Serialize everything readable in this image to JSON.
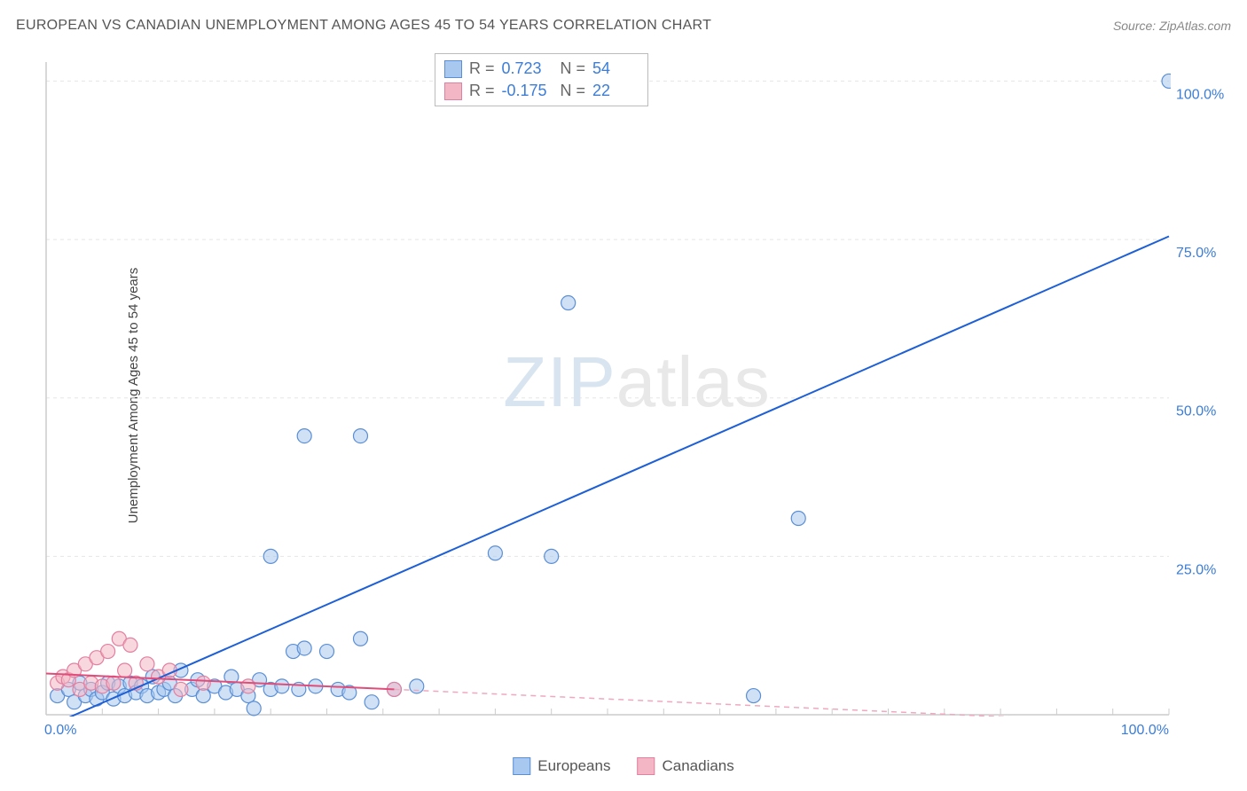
{
  "header": {
    "title": "EUROPEAN VS CANADIAN UNEMPLOYMENT AMONG AGES 45 TO 54 YEARS CORRELATION CHART",
    "source": "Source: ZipAtlas.com"
  },
  "watermark": {
    "zip": "ZIP",
    "atlas": "atlas"
  },
  "chart": {
    "type": "scatter",
    "y_axis_label": "Unemployment Among Ages 45 to 54 years",
    "xlim": [
      0,
      100
    ],
    "ylim": [
      0,
      103
    ],
    "x_ticks": [
      0,
      100
    ],
    "x_tick_labels": [
      "0.0%",
      "100.0%"
    ],
    "y_ticks": [
      25,
      50,
      75,
      100
    ],
    "y_tick_labels": [
      "25.0%",
      "50.0%",
      "75.0%",
      "100.0%"
    ],
    "grid_color": "#e5e5e5",
    "axis_color": "#cccccc",
    "background_color": "#ffffff",
    "marker_radius": 8,
    "marker_opacity": 0.55,
    "series": [
      {
        "name": "Europeans",
        "fill": "#a9c8ef",
        "stroke": "#5a8fd6",
        "trend_line": {
          "x1": 0,
          "y1": -2,
          "x2": 100,
          "y2": 75.5,
          "color": "#1d5fd6",
          "width": 2,
          "dash": null
        },
        "trend_extend": null,
        "stats": {
          "R": "0.723",
          "N": "54"
        },
        "points": [
          [
            1,
            3
          ],
          [
            2,
            4
          ],
          [
            2.5,
            2
          ],
          [
            3,
            5
          ],
          [
            3.5,
            3
          ],
          [
            4,
            4
          ],
          [
            4.5,
            2.5
          ],
          [
            5,
            3.5
          ],
          [
            5.5,
            5
          ],
          [
            6,
            2.5
          ],
          [
            6.5,
            4.5
          ],
          [
            7,
            3
          ],
          [
            7.5,
            5
          ],
          [
            8,
            3.5
          ],
          [
            8.5,
            4.5
          ],
          [
            9,
            3
          ],
          [
            9.5,
            6
          ],
          [
            10,
            3.5
          ],
          [
            10.5,
            4
          ],
          [
            11,
            5
          ],
          [
            11.5,
            3
          ],
          [
            12,
            7
          ],
          [
            13,
            4
          ],
          [
            13.5,
            5.5
          ],
          [
            14,
            3
          ],
          [
            15,
            4.5
          ],
          [
            16,
            3.5
          ],
          [
            16.5,
            6
          ],
          [
            17,
            4
          ],
          [
            18,
            3
          ],
          [
            18.5,
            1
          ],
          [
            19,
            5.5
          ],
          [
            20,
            4
          ],
          [
            21,
            4.5
          ],
          [
            22,
            10
          ],
          [
            22.5,
            4
          ],
          [
            23,
            10.5
          ],
          [
            24,
            4.5
          ],
          [
            25,
            10
          ],
          [
            26,
            4
          ],
          [
            27,
            3.5
          ],
          [
            28,
            12
          ],
          [
            29,
            2
          ],
          [
            31,
            4
          ],
          [
            33,
            4.5
          ],
          [
            20,
            25
          ],
          [
            23,
            44
          ],
          [
            28,
            44
          ],
          [
            40,
            25.5
          ],
          [
            45,
            25
          ],
          [
            46.5,
            65
          ],
          [
            67,
            31
          ],
          [
            63,
            3
          ],
          [
            100,
            100
          ]
        ]
      },
      {
        "name": "Canadians",
        "fill": "#f3b6c5",
        "stroke": "#e37fa0",
        "trend_line": {
          "x1": 0,
          "y1": 6.5,
          "x2": 31,
          "y2": 4.0,
          "color": "#e04d7a",
          "width": 2,
          "dash": null
        },
        "trend_extend": {
          "x1": 31,
          "y1": 4.0,
          "x2": 100,
          "y2": -1.5,
          "color": "#f0a8bf",
          "width": 1.5,
          "dash": "6,5"
        },
        "stats": {
          "R": "-0.175",
          "N": "22"
        },
        "points": [
          [
            1,
            5
          ],
          [
            1.5,
            6
          ],
          [
            2,
            5.5
          ],
          [
            2.5,
            7
          ],
          [
            3,
            4
          ],
          [
            3.5,
            8
          ],
          [
            4,
            5
          ],
          [
            4.5,
            9
          ],
          [
            5,
            4.5
          ],
          [
            5.5,
            10
          ],
          [
            6,
            5
          ],
          [
            6.5,
            12
          ],
          [
            7,
            7
          ],
          [
            7.5,
            11
          ],
          [
            8,
            5
          ],
          [
            9,
            8
          ],
          [
            10,
            6
          ],
          [
            11,
            7
          ],
          [
            12,
            4
          ],
          [
            14,
            5
          ],
          [
            18,
            4.5
          ],
          [
            31,
            4
          ]
        ]
      }
    ],
    "stats_box": {
      "r_label": "R =",
      "n_label": "N ="
    },
    "bottom_legend": [
      {
        "label": "Europeans",
        "fill": "#a9c8ef",
        "stroke": "#5a8fd6"
      },
      {
        "label": "Canadians",
        "fill": "#f3b6c5",
        "stroke": "#e37fa0"
      }
    ],
    "x_minor_ticks": 20
  }
}
